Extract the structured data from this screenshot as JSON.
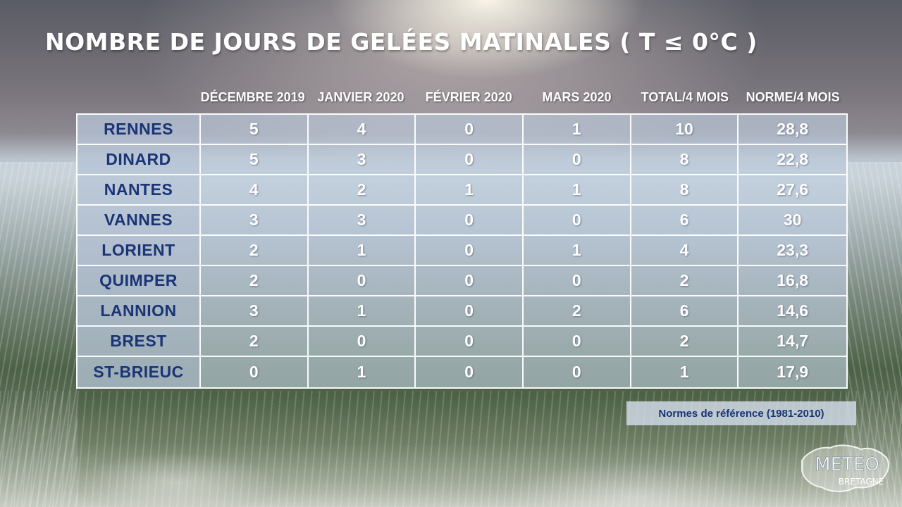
{
  "title": "NOMBRE DE JOURS DE GELÉES MATINALES ( T ≤ 0°C )",
  "chart_data": {
    "type": "table",
    "columns": [
      "DÉCEMBRE 2019",
      "JANVIER 2020",
      "FÉVRIER 2020",
      "MARS 2020",
      "TOTAL/4 MOIS",
      "NORME/4 MOIS"
    ],
    "rows": [
      {
        "city": "RENNES",
        "values": [
          "5",
          "4",
          "0",
          "1",
          "10",
          "28,8"
        ]
      },
      {
        "city": "DINARD",
        "values": [
          "5",
          "3",
          "0",
          "0",
          "8",
          "22,8"
        ]
      },
      {
        "city": "NANTES",
        "values": [
          "4",
          "2",
          "1",
          "1",
          "8",
          "27,6"
        ]
      },
      {
        "city": "VANNES",
        "values": [
          "3",
          "3",
          "0",
          "0",
          "6",
          "30"
        ]
      },
      {
        "city": "LORIENT",
        "values": [
          "2",
          "1",
          "0",
          "1",
          "4",
          "23,3"
        ]
      },
      {
        "city": "QUIMPER",
        "values": [
          "2",
          "0",
          "0",
          "0",
          "2",
          "16,8"
        ]
      },
      {
        "city": "LANNION",
        "values": [
          "3",
          "1",
          "0",
          "2",
          "6",
          "14,6"
        ]
      },
      {
        "city": "BREST",
        "values": [
          "2",
          "0",
          "0",
          "0",
          "2",
          "14,7"
        ]
      },
      {
        "city": "ST-BRIEUC",
        "values": [
          "0",
          "1",
          "0",
          "0",
          "1",
          "17,9"
        ]
      }
    ]
  },
  "note": "Normes de référence (1981-2010)",
  "logo": {
    "line1": "METEO",
    "line2": "BRETAGNE",
    "icon": "meteo-bretagne-logo"
  },
  "colors": {
    "city_text": "#1a3476",
    "value_text": "#ffffff",
    "title_text": "#ffffff"
  }
}
